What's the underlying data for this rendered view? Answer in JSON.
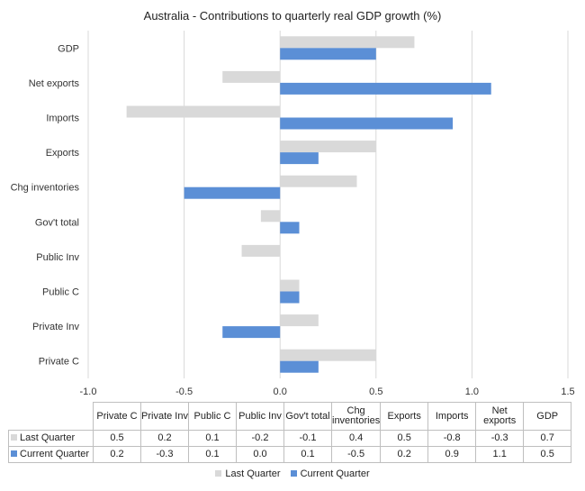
{
  "chart_data": {
    "type": "bar",
    "orientation": "horizontal",
    "title": "Australia - Contributions to quarterly real GDP growth (%)",
    "categories": [
      "Private C",
      "Private Inv",
      "Public C",
      "Public Inv",
      "Gov't total",
      "Chg inventories",
      "Exports",
      "Imports",
      "Net exports",
      "GDP"
    ],
    "series": [
      {
        "name": "Last Quarter",
        "color": "#d9d9d9",
        "values": [
          0.5,
          0.2,
          0.1,
          -0.2,
          -0.1,
          0.4,
          0.5,
          -0.8,
          -0.3,
          0.7
        ]
      },
      {
        "name": "Current Quarter",
        "color": "#5b8fd6",
        "values": [
          0.2,
          -0.3,
          0.1,
          0.0,
          0.1,
          -0.5,
          0.2,
          0.9,
          1.1,
          0.5
        ]
      }
    ],
    "xlim": [
      -1.0,
      1.5
    ],
    "xticks": [
      "-1.0",
      "-0.5",
      "0.0",
      "0.5",
      "1.0",
      "1.5"
    ],
    "grid": "vertical",
    "legend": "bottom",
    "data_table": {
      "headers": [
        "Private C",
        "Private Inv",
        "Public C",
        "Public Inv",
        "Gov't total",
        "Chg inventories",
        "Exports",
        "Imports",
        "Net exports",
        "GDP"
      ],
      "rows": [
        {
          "label": "Last Quarter",
          "cells": [
            "0.5",
            "0.2",
            "0.1",
            "-0.2",
            "-0.1",
            "0.4",
            "0.5",
            "-0.8",
            "-0.3",
            "0.7"
          ]
        },
        {
          "label": "Current Quarter",
          "cells": [
            "0.2",
            "-0.3",
            "0.1",
            "0.0",
            "0.1",
            "-0.5",
            "0.2",
            "0.9",
            "1.1",
            "0.5"
          ]
        }
      ]
    }
  }
}
